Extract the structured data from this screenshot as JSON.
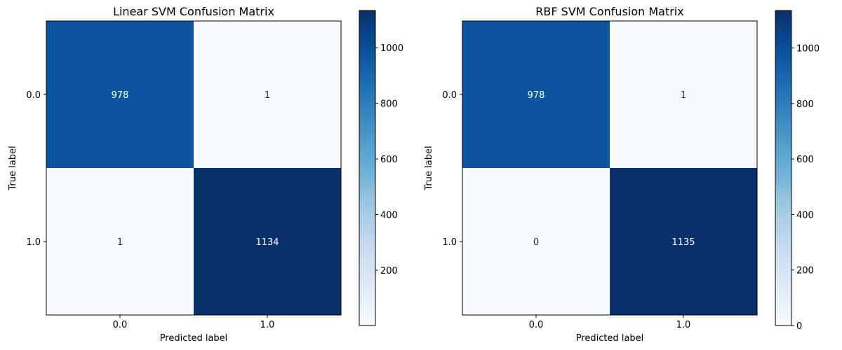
{
  "chart_data": [
    {
      "type": "heatmap",
      "title": "Linear SVM Confusion Matrix",
      "xlabel": "Predicted label",
      "ylabel": "True label",
      "x_categories": [
        "0.0",
        "1.0"
      ],
      "y_categories": [
        "0.0",
        "1.0"
      ],
      "values": [
        [
          978,
          1
        ],
        [
          1,
          1134
        ]
      ],
      "colormap": "Blues",
      "colorbar": {
        "range": [
          1,
          1134
        ],
        "ticks": [
          200,
          400,
          600,
          800,
          1000
        ]
      }
    },
    {
      "type": "heatmap",
      "title": "RBF SVM Confusion Matrix",
      "xlabel": "Predicted label",
      "ylabel": "True label",
      "x_categories": [
        "0.0",
        "1.0"
      ],
      "y_categories": [
        "0.0",
        "1.0"
      ],
      "values": [
        [
          978,
          1
        ],
        [
          0,
          1135
        ]
      ],
      "colormap": "Blues",
      "colorbar": {
        "range": [
          0,
          1135
        ],
        "ticks": [
          0,
          200,
          400,
          600,
          800,
          1000
        ]
      }
    }
  ]
}
